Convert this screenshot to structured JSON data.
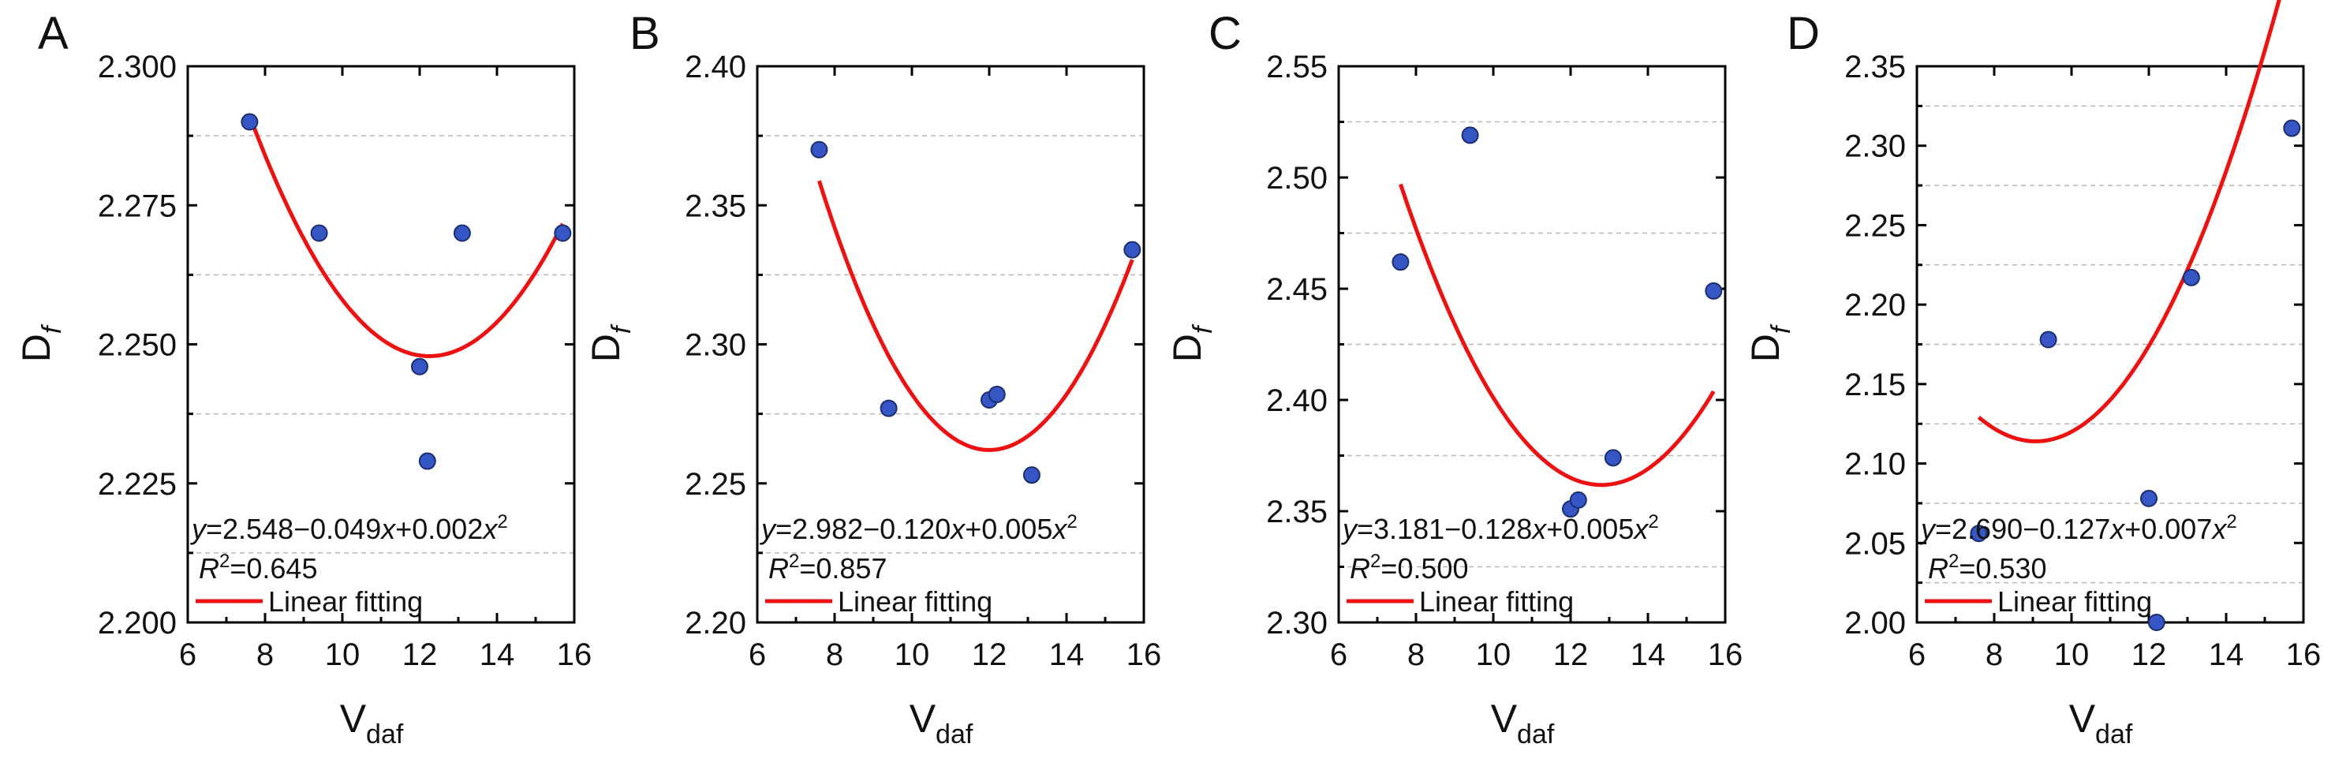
{
  "chart_data": [
    {
      "type": "scatter",
      "panel_label": "A",
      "xlabel": "V",
      "xlabel_sub": "daf",
      "ylabel": "D",
      "ylabel_sub": "f",
      "xlim": [
        6,
        16
      ],
      "ylim": [
        2.2,
        2.3
      ],
      "x_ticks": [
        6,
        8,
        10,
        12,
        14,
        16
      ],
      "x_tick_labels": [
        "6",
        "8",
        "10",
        "12",
        "14",
        "16"
      ],
      "y_ticks": [
        2.2,
        2.225,
        2.25,
        2.275,
        2.3
      ],
      "y_tick_labels": [
        "2.200",
        "2.225",
        "2.250",
        "2.275",
        "2.300"
      ],
      "y_minor_ticks": [
        2.2125,
        2.2375,
        2.2625,
        2.2875
      ],
      "grid": "dashed at minor y ticks",
      "points": {
        "x": [
          7.6,
          9.4,
          12.0,
          12.2,
          13.1,
          15.7
        ],
        "y": [
          2.29,
          2.27,
          2.246,
          2.229,
          2.27,
          2.27
        ]
      },
      "fit": {
        "a": 2.548,
        "b": -0.049,
        "c": 0.002,
        "x_range": [
          7.6,
          15.7
        ]
      },
      "equation": {
        "y": "y",
        "rest": "=2.548−0.049",
        "x": "x",
        "rest2": "+0.002",
        "x2": "x",
        "exp": "2"
      },
      "r2": {
        "r": "R",
        "exp": "2",
        "value": "=0.645"
      },
      "legend": {
        "label": "Linear fitting",
        "position": "bottom-left"
      }
    },
    {
      "type": "scatter",
      "panel_label": "B",
      "xlabel": "V",
      "xlabel_sub": "daf",
      "ylabel": "D",
      "ylabel_sub": "f",
      "xlim": [
        6,
        16
      ],
      "ylim": [
        2.2,
        2.4
      ],
      "x_ticks": [
        6,
        8,
        10,
        12,
        14,
        16
      ],
      "x_tick_labels": [
        "6",
        "8",
        "10",
        "12",
        "14",
        "16"
      ],
      "y_ticks": [
        2.2,
        2.25,
        2.3,
        2.35,
        2.4
      ],
      "y_tick_labels": [
        "2.20",
        "2.25",
        "2.30",
        "2.35",
        "2.40"
      ],
      "y_minor_ticks": [
        2.225,
        2.275,
        2.325,
        2.375
      ],
      "grid": "dashed at minor y ticks",
      "points": {
        "x": [
          7.6,
          9.4,
          12.0,
          12.2,
          13.1,
          15.7
        ],
        "y": [
          2.37,
          2.277,
          2.28,
          2.282,
          2.253,
          2.334
        ]
      },
      "fit": {
        "a": 2.982,
        "b": -0.12,
        "c": 0.005,
        "x_range": [
          7.6,
          15.7
        ]
      },
      "equation": {
        "y": "y",
        "rest": "=2.982−0.120",
        "x": "x",
        "rest2": "+0.005",
        "x2": "x",
        "exp": "2"
      },
      "r2": {
        "r": "R",
        "exp": "2",
        "value": "=0.857"
      },
      "legend": {
        "label": "Linear fitting",
        "position": "bottom-left"
      }
    },
    {
      "type": "scatter",
      "panel_label": "C",
      "xlabel": "V",
      "xlabel_sub": "daf",
      "ylabel": "D",
      "ylabel_sub": "f",
      "xlim": [
        6,
        16
      ],
      "ylim": [
        2.3,
        2.55
      ],
      "x_ticks": [
        6,
        8,
        10,
        12,
        14,
        16
      ],
      "x_tick_labels": [
        "6",
        "8",
        "10",
        "12",
        "14",
        "16"
      ],
      "y_ticks": [
        2.3,
        2.35,
        2.4,
        2.45,
        2.5,
        2.55
      ],
      "y_tick_labels": [
        "2.30",
        "2.35",
        "2.40",
        "2.45",
        "2.50",
        "2.55"
      ],
      "y_minor_ticks": [
        2.325,
        2.375,
        2.425,
        2.475,
        2.525
      ],
      "grid": "dashed at minor y ticks",
      "points": {
        "x": [
          7.6,
          9.4,
          12.0,
          12.2,
          13.1,
          15.7
        ],
        "y": [
          2.462,
          2.519,
          2.351,
          2.355,
          2.374,
          2.449
        ]
      },
      "fit": {
        "a": 3.181,
        "b": -0.128,
        "c": 0.005,
        "x_range": [
          7.6,
          15.7
        ]
      },
      "equation": {
        "y": "y",
        "rest": "=3.181−0.128",
        "x": "x",
        "rest2": "+0.005",
        "x2": "x",
        "exp": "2"
      },
      "r2": {
        "r": "R",
        "exp": "2",
        "value": "=0.500"
      },
      "legend": {
        "label": "Linear fitting",
        "position": "bottom-left"
      }
    },
    {
      "type": "scatter",
      "panel_label": "D",
      "xlabel": "V",
      "xlabel_sub": "daf",
      "ylabel": "D",
      "ylabel_sub": "f",
      "xlim": [
        6,
        16
      ],
      "ylim": [
        2.0,
        2.35
      ],
      "x_ticks": [
        6,
        8,
        10,
        12,
        14,
        16
      ],
      "x_tick_labels": [
        "6",
        "8",
        "10",
        "12",
        "14",
        "16"
      ],
      "y_ticks": [
        2.0,
        2.05,
        2.1,
        2.15,
        2.2,
        2.25,
        2.3,
        2.35
      ],
      "y_tick_labels": [
        "2.00",
        "2.05",
        "2.10",
        "2.15",
        "2.20",
        "2.25",
        "2.30",
        "2.35"
      ],
      "y_minor_ticks": [
        2.025,
        2.075,
        2.125,
        2.175,
        2.225,
        2.275,
        2.325
      ],
      "grid": "dashed at minor y ticks",
      "points": {
        "x": [
          7.6,
          9.4,
          12.0,
          12.2,
          13.1,
          15.7
        ],
        "y": [
          2.056,
          2.178,
          2.078,
          2.0,
          2.217,
          2.311
        ]
      },
      "fit": {
        "a": 2.69,
        "b": -0.127,
        "c": 0.007,
        "x_range": [
          7.6,
          15.7
        ]
      },
      "equation": {
        "y": "y",
        "rest": "=2.690−0.127",
        "x": "x",
        "rest2": "+0.007",
        "x2": "x",
        "exp": "2"
      },
      "r2": {
        "r": "R",
        "exp": "2",
        "value": "=0.530"
      },
      "legend": {
        "label": "Linear fitting",
        "position": "bottom-left"
      }
    }
  ]
}
